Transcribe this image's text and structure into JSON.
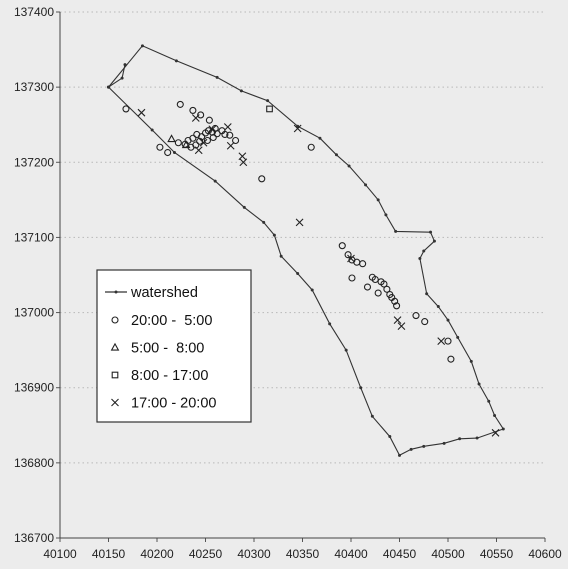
{
  "chart_data": {
    "type": "scatter",
    "title": "",
    "xlabel": "",
    "ylabel": "",
    "xlim": [
      40100,
      40600
    ],
    "ylim": [
      136700,
      137400
    ],
    "xticks": [
      "40100",
      "40150",
      "40200",
      "40250",
      "40300",
      "40350",
      "40400",
      "40450",
      "40500",
      "40550",
      "40600"
    ],
    "yticks": [
      "136700",
      "136800",
      "136900",
      "137000",
      "137100",
      "137200",
      "137300",
      "137400"
    ],
    "grid": "horizontal-dotted",
    "legend_position": "left-middle",
    "watershed": {
      "name": "watershed",
      "points": [
        [
          40150,
          137300
        ],
        [
          40185,
          137355
        ],
        [
          40220,
          137335
        ],
        [
          40262,
          137313
        ],
        [
          40287,
          137295
        ],
        [
          40314,
          137282
        ],
        [
          40345,
          137248
        ],
        [
          40368,
          137232
        ],
        [
          40385,
          137210
        ],
        [
          40398,
          137195
        ],
        [
          40415,
          137170
        ],
        [
          40428,
          137150
        ],
        [
          40436,
          137130
        ],
        [
          40446,
          137108
        ],
        [
          40482,
          137107
        ],
        [
          40486,
          137095
        ],
        [
          40475,
          137082
        ],
        [
          40471,
          137072
        ],
        [
          40478,
          137025
        ],
        [
          40490,
          137008
        ],
        [
          40500,
          136990
        ],
        [
          40510,
          136967
        ],
        [
          40524,
          136935
        ],
        [
          40532,
          136905
        ],
        [
          40542,
          136882
        ],
        [
          40548,
          136863
        ],
        [
          40557,
          136845
        ],
        [
          40530,
          136833
        ],
        [
          40512,
          136832
        ],
        [
          40496,
          136826
        ],
        [
          40475,
          136822
        ],
        [
          40462,
          136818
        ],
        [
          40450,
          136810
        ],
        [
          40440,
          136835
        ],
        [
          40422,
          136862
        ],
        [
          40410,
          136900
        ],
        [
          40395,
          136950
        ],
        [
          40378,
          136985
        ],
        [
          40360,
          137030
        ],
        [
          40345,
          137052
        ],
        [
          40328,
          137075
        ],
        [
          40321,
          137103
        ],
        [
          40310,
          137120
        ],
        [
          40290,
          137140
        ],
        [
          40260,
          137175
        ],
        [
          40218,
          137213
        ],
        [
          40195,
          137243
        ],
        [
          40150,
          137300
        ]
      ],
      "spur": [
        [
          40167,
          137330
        ],
        [
          40164,
          137312
        ],
        [
          40150,
          137300
        ]
      ]
    },
    "series": [
      {
        "name": "20:00 -  5:00",
        "marker": "circle",
        "points": [
          [
            40168,
            137271
          ],
          [
            40203,
            137220
          ],
          [
            40211,
            137213
          ],
          [
            40222,
            137226
          ],
          [
            40229,
            137224
          ],
          [
            40232,
            137229
          ],
          [
            40237,
            137232
          ],
          [
            40241,
            137237
          ],
          [
            40246,
            137234
          ],
          [
            40250,
            137239
          ],
          [
            40253,
            137242
          ],
          [
            40257,
            137240
          ],
          [
            40260,
            137245
          ],
          [
            40262,
            137238
          ],
          [
            40267,
            137242
          ],
          [
            40270,
            137237
          ],
          [
            40258,
            137233
          ],
          [
            40252,
            137229
          ],
          [
            40244,
            137228
          ],
          [
            40224,
            137277
          ],
          [
            40237,
            137269
          ],
          [
            40245,
            137263
          ],
          [
            40254,
            137256
          ],
          [
            40275,
            137236
          ],
          [
            40281,
            137229
          ],
          [
            40308,
            137178
          ],
          [
            40359,
            137220
          ],
          [
            40391,
            137089
          ],
          [
            40397,
            137077
          ],
          [
            40401,
            137070
          ],
          [
            40406,
            137067
          ],
          [
            40412,
            137065
          ],
          [
            40401,
            137046
          ],
          [
            40417,
            137034
          ],
          [
            40422,
            137047
          ],
          [
            40425,
            137044
          ],
          [
            40428,
            137026
          ],
          [
            40431,
            137041
          ],
          [
            40434,
            137038
          ],
          [
            40437,
            137031
          ],
          [
            40440,
            137024
          ],
          [
            40442,
            137020
          ],
          [
            40445,
            137015
          ],
          [
            40447,
            137009
          ],
          [
            40467,
            136996
          ],
          [
            40476,
            136988
          ],
          [
            40503,
            136938
          ],
          [
            40500,
            136962
          ],
          [
            40235,
            137220
          ],
          [
            40240,
            137223
          ]
        ]
      },
      {
        "name": "5:00 -  8:00",
        "marker": "triangle",
        "points": [
          [
            40215,
            137231
          ],
          [
            40230,
            137223
          ]
        ]
      },
      {
        "name": "8:00 - 17:00",
        "marker": "square",
        "points": [
          [
            40316,
            137271
          ]
        ]
      },
      {
        "name": "17:00 - 20:00",
        "marker": "cross",
        "points": [
          [
            40184,
            137266
          ],
          [
            40240,
            137259
          ],
          [
            40257,
            137244
          ],
          [
            40273,
            137247
          ],
          [
            40276,
            137222
          ],
          [
            40288,
            137208
          ],
          [
            40289,
            137200
          ],
          [
            40243,
            137216
          ],
          [
            40248,
            137226
          ],
          [
            40345,
            137245
          ],
          [
            40347,
            137120
          ],
          [
            40400,
            137072
          ],
          [
            40448,
            136990
          ],
          [
            40452,
            136982
          ],
          [
            40493,
            136962
          ],
          [
            40549,
            136840
          ]
        ]
      }
    ]
  }
}
